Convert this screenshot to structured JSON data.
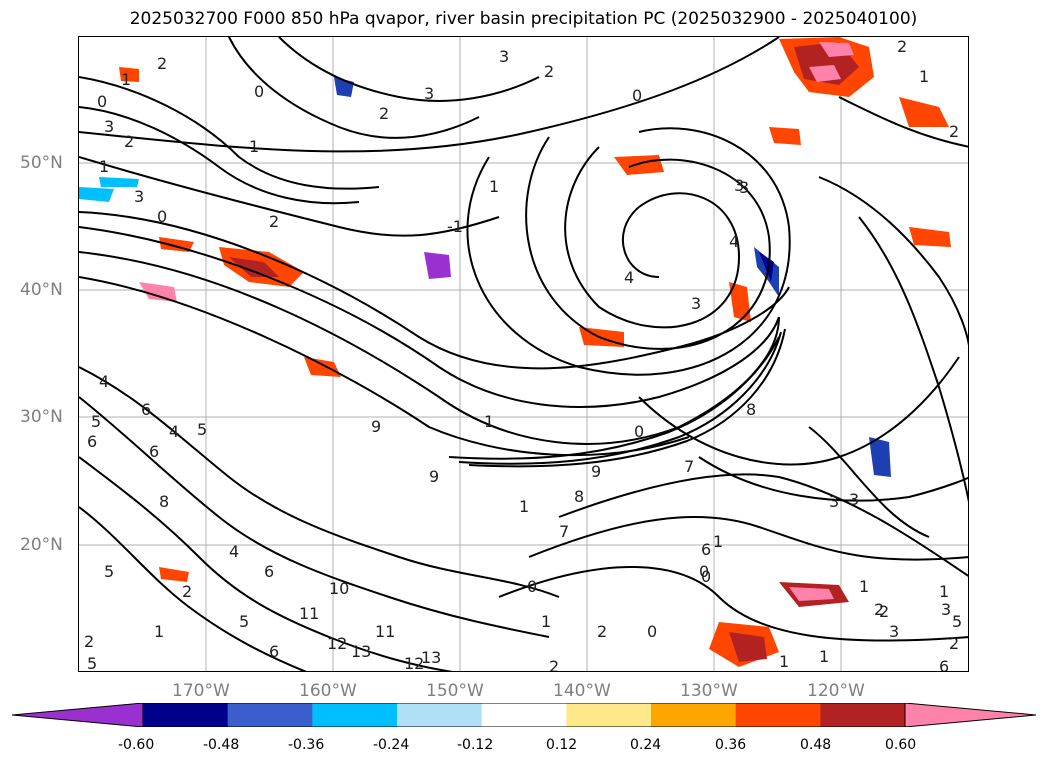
{
  "title": "2025032700 F000 850 hPa qvapor, river basin precipitation PC (2025032900 - 2025040100)",
  "lat_labels": [
    "50°N",
    "40°N",
    "30°N",
    "20°N"
  ],
  "lon_labels": [
    "170°W",
    "160°W",
    "150°W",
    "140°W",
    "130°W",
    "120°W"
  ],
  "colorbar": {
    "ticks": [
      "-0.60",
      "-0.48",
      "-0.36",
      "-0.24",
      "-0.12",
      "0.12",
      "0.24",
      "0.36",
      "0.48",
      "0.60"
    ],
    "colors": [
      "#9b30d0",
      "#00008b",
      "#3a5fcd",
      "#00bfff",
      "#b0e0f8",
      "#ffffff",
      "#ffe88a",
      "#ffa500",
      "#ff4500",
      "#b22222",
      "#ff82ab"
    ],
    "extend": "both"
  },
  "contour_labels": [
    "1",
    "2",
    "0",
    "3",
    "1",
    "2",
    "0",
    "3",
    "2",
    "1",
    "-1",
    "0",
    "2",
    "1",
    "2",
    "3",
    "3",
    "0",
    "4",
    "3",
    "4",
    "3",
    "0",
    "1",
    "2",
    "1",
    "2",
    "3",
    "4",
    "5",
    "6",
    "6",
    "4",
    "5",
    "9",
    "8",
    "7",
    "6",
    "9",
    "1",
    "8",
    "7",
    "0",
    "1",
    "2",
    "3",
    "1",
    "2",
    "5",
    "6",
    "10",
    "11",
    "12",
    "13",
    "12",
    "13",
    "11",
    "2",
    "5",
    "6",
    "4",
    "8",
    "5",
    "2",
    "6",
    "9",
    "0",
    "1",
    "2",
    "1",
    "0",
    "1",
    "2",
    "3",
    "5",
    "6",
    "1",
    "0",
    "1",
    "2",
    "3",
    "3"
  ]
}
